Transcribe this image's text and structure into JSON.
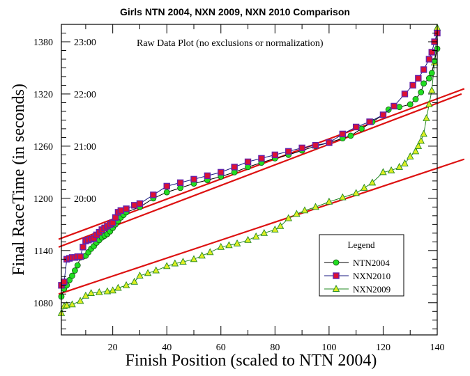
{
  "chart_data": {
    "type": "scatter",
    "title": "Girls NTN 2004, NXN 2009, NXN 2010 Comparison",
    "annotation": "Raw Data Plot (no exclusions or normalization)",
    "xlabel": "Finish Position (scaled to NTN 2004)",
    "ylabel": "Final RaceTime (in seconds)",
    "xlim": [
      1,
      140
    ],
    "ylim": [
      1043,
      1400
    ],
    "x_ticks": [
      20,
      40,
      60,
      80,
      100,
      120,
      140
    ],
    "x_minor_ticks": [
      10,
      30,
      50,
      70,
      90,
      110,
      130
    ],
    "y_ticks": [
      1080,
      1140,
      1200,
      1260,
      1320,
      1380
    ],
    "y_minor_step": 10,
    "y_secondary_labels": [
      {
        "value": 1200,
        "label": "20:00"
      },
      {
        "value": 1260,
        "label": "21:00"
      },
      {
        "value": 1320,
        "label": "22:00"
      },
      {
        "value": 1380,
        "label": "23:00"
      }
    ],
    "grid": false,
    "legend": {
      "title": "Legend",
      "position": "lower-right",
      "entries": [
        {
          "name": "NTN2004",
          "marker": "circle",
          "fill": "#22dd22",
          "line": "#000000"
        },
        {
          "name": "NXN2010",
          "marker": "square",
          "fill": "#dd1133",
          "line": "#1a1a80"
        },
        {
          "name": "NXN2009",
          "marker": "triangle",
          "fill": "#ddee22",
          "line": "#228822"
        }
      ]
    },
    "series": [
      {
        "name": "NTN2004",
        "marker": "circle",
        "fill": "#22dd22",
        "stroke": "#115511",
        "line": "#000000",
        "points": [
          [
            1,
            1087
          ],
          [
            2,
            1096
          ],
          [
            3,
            1100
          ],
          [
            4,
            1106
          ],
          [
            5,
            1111
          ],
          [
            6,
            1117
          ],
          [
            7,
            1123
          ],
          [
            8,
            1132
          ],
          [
            9,
            1133
          ],
          [
            10,
            1134
          ],
          [
            11,
            1138
          ],
          [
            12,
            1142
          ],
          [
            13,
            1145
          ],
          [
            14,
            1149
          ],
          [
            15,
            1152
          ],
          [
            16,
            1155
          ],
          [
            17,
            1157
          ],
          [
            18,
            1159
          ],
          [
            19,
            1162
          ],
          [
            20,
            1166
          ],
          [
            21,
            1170
          ],
          [
            22,
            1174
          ],
          [
            23,
            1178
          ],
          [
            24,
            1181
          ],
          [
            25,
            1184
          ],
          [
            30,
            1190
          ],
          [
            35,
            1200
          ],
          [
            40,
            1207
          ],
          [
            45,
            1212
          ],
          [
            50,
            1217
          ],
          [
            55,
            1221
          ],
          [
            60,
            1225
          ],
          [
            65,
            1230
          ],
          [
            70,
            1236
          ],
          [
            75,
            1241
          ],
          [
            80,
            1246
          ],
          [
            85,
            1250
          ],
          [
            90,
            1255
          ],
          [
            95,
            1260
          ],
          [
            100,
            1264
          ],
          [
            105,
            1269
          ],
          [
            108,
            1272
          ],
          [
            112,
            1280
          ],
          [
            116,
            1288
          ],
          [
            120,
            1296
          ],
          [
            122,
            1302
          ],
          [
            126,
            1305
          ],
          [
            130,
            1308
          ],
          [
            132,
            1314
          ],
          [
            134,
            1322
          ],
          [
            135,
            1332
          ],
          [
            137,
            1338
          ],
          [
            138,
            1344
          ],
          [
            139,
            1358
          ],
          [
            140,
            1372
          ]
        ]
      },
      {
        "name": "NXN2010",
        "marker": "square",
        "fill": "#dd1133",
        "stroke": "#6622aa",
        "line": "#1a1a80",
        "points": [
          [
            1,
            1100
          ],
          [
            2,
            1104
          ],
          [
            3,
            1130
          ],
          [
            4,
            1131
          ],
          [
            5,
            1132
          ],
          [
            6,
            1132
          ],
          [
            7,
            1133
          ],
          [
            8,
            1133
          ],
          [
            9,
            1144
          ],
          [
            10,
            1151
          ],
          [
            11,
            1152
          ],
          [
            12,
            1153
          ],
          [
            13,
            1154
          ],
          [
            14,
            1158
          ],
          [
            15,
            1161
          ],
          [
            16,
            1164
          ],
          [
            17,
            1166
          ],
          [
            18,
            1168
          ],
          [
            19,
            1170
          ],
          [
            20,
            1172
          ],
          [
            21,
            1178
          ],
          [
            22,
            1184
          ],
          [
            23,
            1186
          ],
          [
            25,
            1188
          ],
          [
            28,
            1192
          ],
          [
            30,
            1194
          ],
          [
            35,
            1204
          ],
          [
            40,
            1214
          ],
          [
            45,
            1218
          ],
          [
            50,
            1222
          ],
          [
            55,
            1226
          ],
          [
            60,
            1230
          ],
          [
            65,
            1236
          ],
          [
            70,
            1242
          ],
          [
            75,
            1246
          ],
          [
            80,
            1250
          ],
          [
            85,
            1254
          ],
          [
            90,
            1258
          ],
          [
            95,
            1261
          ],
          [
            100,
            1264
          ],
          [
            105,
            1274
          ],
          [
            110,
            1282
          ],
          [
            115,
            1288
          ],
          [
            120,
            1296
          ],
          [
            124,
            1306
          ],
          [
            128,
            1320
          ],
          [
            131,
            1330
          ],
          [
            133,
            1338
          ],
          [
            135,
            1348
          ],
          [
            137,
            1360
          ],
          [
            138,
            1368
          ],
          [
            139,
            1380
          ],
          [
            140,
            1390
          ]
        ]
      },
      {
        "name": "NXN2009",
        "marker": "triangle",
        "fill": "#ddee22",
        "stroke": "#228822",
        "line": "#228822",
        "points": [
          [
            1,
            1068
          ],
          [
            2,
            1076
          ],
          [
            3,
            1077
          ],
          [
            5,
            1078
          ],
          [
            8,
            1082
          ],
          [
            10,
            1088
          ],
          [
            12,
            1091
          ],
          [
            15,
            1092
          ],
          [
            18,
            1093
          ],
          [
            20,
            1094
          ],
          [
            22,
            1097
          ],
          [
            25,
            1100
          ],
          [
            28,
            1104
          ],
          [
            30,
            1111
          ],
          [
            33,
            1114
          ],
          [
            36,
            1117
          ],
          [
            40,
            1122
          ],
          [
            43,
            1125
          ],
          [
            46,
            1127
          ],
          [
            50,
            1130
          ],
          [
            53,
            1134
          ],
          [
            56,
            1138
          ],
          [
            60,
            1144
          ],
          [
            63,
            1146
          ],
          [
            66,
            1148
          ],
          [
            70,
            1152
          ],
          [
            73,
            1156
          ],
          [
            76,
            1160
          ],
          [
            80,
            1164
          ],
          [
            82,
            1168
          ],
          [
            85,
            1177
          ],
          [
            88,
            1182
          ],
          [
            91,
            1186
          ],
          [
            95,
            1190
          ],
          [
            100,
            1196
          ],
          [
            105,
            1201
          ],
          [
            110,
            1206
          ],
          [
            113,
            1212
          ],
          [
            116,
            1218
          ],
          [
            120,
            1230
          ],
          [
            123,
            1232
          ],
          [
            126,
            1236
          ],
          [
            128,
            1240
          ],
          [
            130,
            1248
          ],
          [
            132,
            1254
          ],
          [
            133,
            1260
          ],
          [
            134,
            1266
          ],
          [
            135,
            1274
          ],
          [
            136,
            1292
          ],
          [
            137,
            1308
          ],
          [
            138,
            1324
          ],
          [
            139,
            1356
          ],
          [
            140,
            1396
          ]
        ]
      }
    ],
    "trend_lines": [
      {
        "name": "NXN2010-fit",
        "color": "#dd1111",
        "from": [
          0,
          1153
        ],
        "to": [
          150,
          1326
        ]
      },
      {
        "name": "NTN2004-fit",
        "color": "#dd1111",
        "from": [
          0,
          1144
        ],
        "to": [
          149,
          1320
        ]
      },
      {
        "name": "NXN2009-fit",
        "color": "#dd1111",
        "from": [
          0,
          1090
        ],
        "to": [
          150,
          1245
        ]
      }
    ]
  }
}
